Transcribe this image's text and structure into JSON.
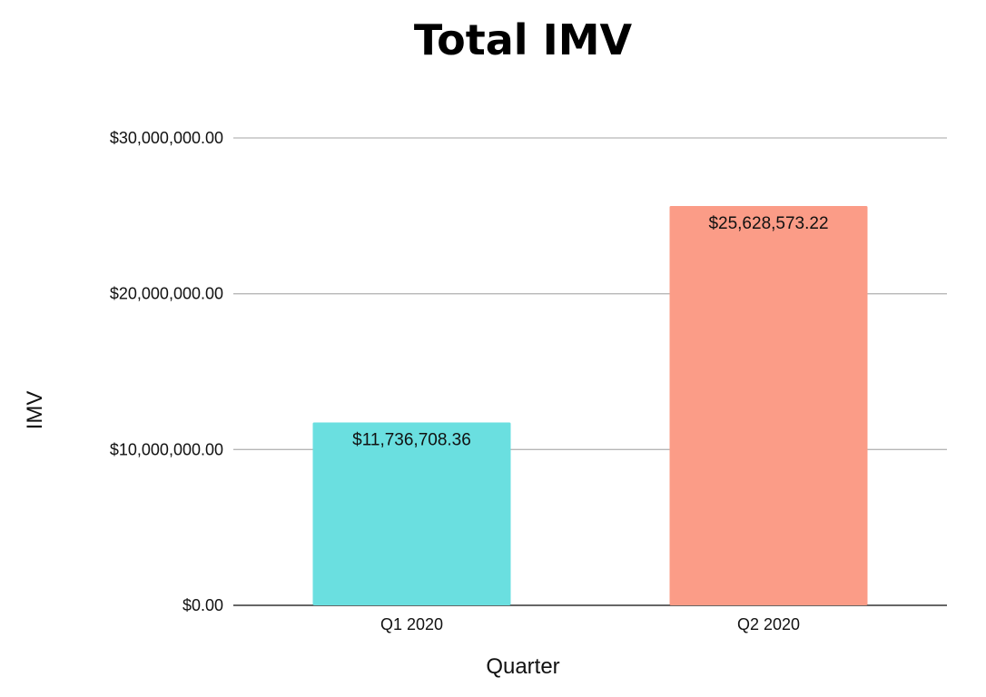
{
  "chart_data": {
    "type": "bar",
    "title": "Total IMV",
    "xlabel": "Quarter",
    "ylabel": "IMV",
    "categories": [
      "Q1 2020",
      "Q2 2020"
    ],
    "values": [
      11736708.36,
      25628573.22
    ],
    "data_labels": [
      "$11,736,708.36",
      "$25,628,573.22"
    ],
    "bar_colors": [
      "#6ADFE0",
      "#FB9C87"
    ],
    "ylim": [
      0,
      30000000
    ],
    "yticks": [
      0,
      10000000,
      20000000,
      30000000
    ],
    "ytick_labels": [
      "$0.00",
      "$10,000,000.00",
      "$20,000,000.00",
      "$30,000,000.00"
    ],
    "grid": true,
    "legend": "none"
  }
}
